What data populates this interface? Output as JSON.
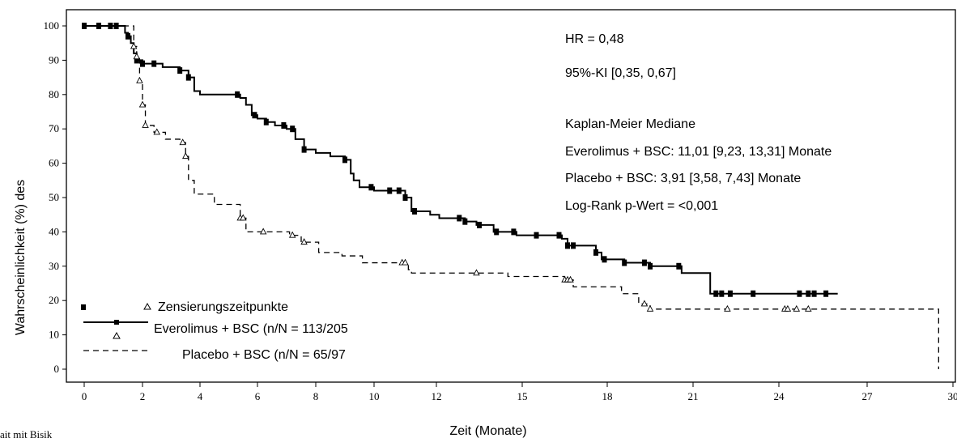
{
  "chart_data": {
    "type": "line",
    "subtype": "kaplan-meier",
    "xlabel": "Zeit (Monate)",
    "ylabel": "Wahrscheinlichkeit (%) des",
    "x_ticks": [
      "0",
      "2",
      "4",
      "6",
      "8",
      "10",
      "12",
      "15",
      "18",
      "21",
      "24",
      "27",
      "30"
    ],
    "y_ticks": [
      "0",
      "10",
      "20",
      "30",
      "40",
      "50",
      "60",
      "70",
      "80",
      "90",
      "100"
    ],
    "ylim": [
      0,
      100
    ],
    "grid": false,
    "annotations": [
      "HR = 0,48",
      "95%-KI [0,35, 0,67]",
      "Kaplan-Meier Mediane",
      "Everolimus + BSC: 11,01 [9,23, 13,31] Monate",
      "Placebo + BSC: 3,91 [3,58, 7,43] Monate",
      "Log-Rank p-Wert = <0,001"
    ],
    "legend": {
      "placement": "bottom-left",
      "censor_label": "Zensierungszeitpunkte",
      "entries": [
        "Everolimus + BSC (n/N = 113/205",
        "Placebo + BSC (n/N = 65/97"
      ]
    },
    "series": [
      {
        "name": "Everolimus + BSC",
        "line": "solid",
        "marker": "filled-square",
        "steps": [
          [
            0,
            100
          ],
          [
            1.4,
            98
          ],
          [
            1.5,
            97
          ],
          [
            1.6,
            95
          ],
          [
            1.7,
            92
          ],
          [
            1.8,
            90
          ],
          [
            2.0,
            89
          ],
          [
            2.7,
            88
          ],
          [
            3.3,
            87
          ],
          [
            3.6,
            85
          ],
          [
            3.8,
            81
          ],
          [
            4.0,
            80
          ],
          [
            5.4,
            79
          ],
          [
            5.6,
            77
          ],
          [
            5.8,
            74
          ],
          [
            6.0,
            73
          ],
          [
            6.3,
            72
          ],
          [
            6.6,
            71
          ],
          [
            7.0,
            70
          ],
          [
            7.3,
            67
          ],
          [
            7.6,
            64
          ],
          [
            8.0,
            63
          ],
          [
            8.5,
            62
          ],
          [
            9.0,
            61
          ],
          [
            9.2,
            57
          ],
          [
            9.3,
            55
          ],
          [
            9.5,
            53
          ],
          [
            10.0,
            52
          ],
          [
            11.0,
            50
          ],
          [
            11.2,
            46
          ],
          [
            11.8,
            45
          ],
          [
            12.1,
            44
          ],
          [
            13.0,
            43
          ],
          [
            13.4,
            42
          ],
          [
            14.0,
            40
          ],
          [
            14.8,
            39
          ],
          [
            16.4,
            38
          ],
          [
            16.6,
            36
          ],
          [
            17.6,
            34
          ],
          [
            17.8,
            32
          ],
          [
            18.6,
            31
          ],
          [
            19.5,
            30
          ],
          [
            20.6,
            28
          ],
          [
            21.6,
            22
          ],
          [
            26.0,
            22
          ]
        ],
        "censor_x": [
          0,
          0.5,
          0.9,
          1.1,
          1.5,
          1.8,
          2.0,
          2.4,
          3.3,
          3.6,
          5.3,
          5.9,
          6.3,
          6.9,
          7.2,
          7.6,
          9.0,
          9.9,
          10.5,
          10.8,
          11.0,
          11.3,
          12.8,
          13.0,
          13.5,
          14.1,
          14.7,
          15.5,
          16.3,
          16.6,
          16.8,
          17.6,
          17.9,
          18.6,
          19.3,
          19.5,
          20.5,
          21.8,
          22.0,
          22.3,
          23.1,
          24.7,
          25.0,
          25.2,
          25.6
        ],
        "end_x": 25.9
      },
      {
        "name": "Placebo + BSC",
        "line": "dashed",
        "marker": "open-triangle",
        "steps": [
          [
            0,
            100
          ],
          [
            1.7,
            94
          ],
          [
            1.8,
            91
          ],
          [
            1.9,
            84
          ],
          [
            2.0,
            77
          ],
          [
            2.1,
            71
          ],
          [
            2.4,
            69
          ],
          [
            2.8,
            67
          ],
          [
            3.3,
            66
          ],
          [
            3.5,
            62
          ],
          [
            3.6,
            55
          ],
          [
            3.8,
            51
          ],
          [
            4.5,
            48
          ],
          [
            5.4,
            44
          ],
          [
            5.6,
            40
          ],
          [
            7.1,
            39
          ],
          [
            7.5,
            37
          ],
          [
            8.1,
            34
          ],
          [
            8.9,
            33
          ],
          [
            9.6,
            31
          ],
          [
            11.1,
            29
          ],
          [
            11.2,
            28
          ],
          [
            14.5,
            27
          ],
          [
            16.5,
            26
          ],
          [
            16.8,
            24
          ],
          [
            18.5,
            22
          ],
          [
            19.1,
            19
          ],
          [
            19.5,
            17.5
          ],
          [
            29.5,
            17.5
          ],
          [
            29.5,
            0
          ]
        ],
        "censor_x": [
          1.7,
          1.8,
          1.9,
          2.0,
          2.1,
          2.5,
          3.4,
          3.5,
          5.4,
          5.5,
          6.2,
          7.2,
          7.6,
          10.9,
          11.0,
          13.4,
          16.5,
          16.6,
          16.7,
          19.3,
          19.5,
          22.2,
          24.2,
          24.3,
          24.6,
          25.0
        ]
      }
    ]
  },
  "footer": {
    "cropped_text": "ait mit Bisik"
  }
}
